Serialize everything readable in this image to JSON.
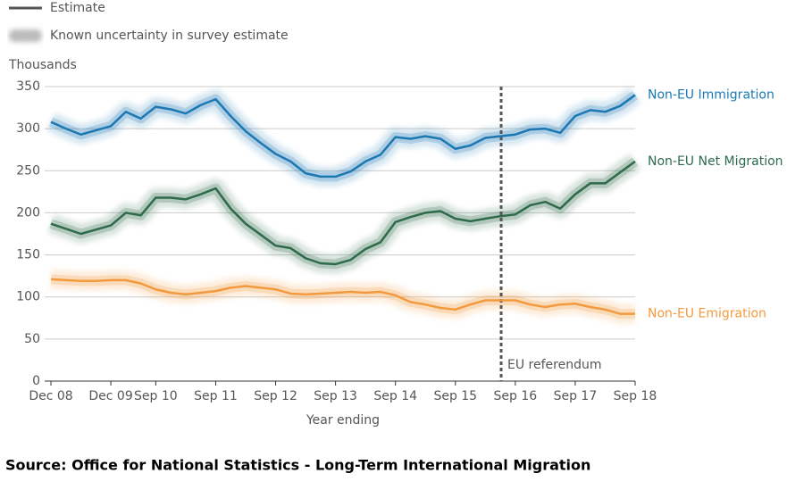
{
  "chart_data": {
    "type": "line",
    "legend": [
      "Estimate",
      "Known uncertainty in survey estimate"
    ],
    "y_label": "Thousands",
    "x_label": "Year ending",
    "annotation": "EU referendum",
    "source": "Source: Office for National Statistics - Long-Term International Migration",
    "categories": [
      "Dec 08",
      null,
      null,
      null,
      "Dec 09",
      null,
      null,
      "Sep 10",
      null,
      null,
      null,
      "Sep 11",
      null,
      null,
      null,
      "Sep 12",
      null,
      null,
      null,
      "Sep 13",
      null,
      null,
      null,
      "Sep 14",
      null,
      null,
      null,
      "Sep 15",
      null,
      null,
      null,
      "Sep 16",
      null,
      null,
      null,
      "Sep 17",
      null,
      null,
      null,
      "Sep 18"
    ],
    "series": [
      {
        "name": "Non-EU Immigration",
        "color": "#1b78b3",
        "values": [
          308,
          300,
          293,
          298,
          303,
          320,
          312,
          326,
          323,
          318,
          328,
          335,
          315,
          297,
          283,
          270,
          261,
          247,
          243,
          243,
          249,
          261,
          269,
          290,
          288,
          291,
          288,
          276,
          280,
          289,
          291,
          293,
          299,
          300,
          295,
          315,
          322,
          320,
          327,
          340
        ]
      },
      {
        "name": "Non-EU Net Migration",
        "color": "#2d6b4a",
        "values": [
          187,
          181,
          175,
          180,
          185,
          200,
          197,
          218,
          218,
          216,
          222,
          229,
          205,
          187,
          174,
          161,
          158,
          146,
          140,
          139,
          144,
          157,
          165,
          189,
          195,
          200,
          202,
          193,
          190,
          193,
          196,
          198,
          209,
          213,
          205,
          222,
          235,
          235,
          248,
          261
        ]
      },
      {
        "name": "Non-EU Emigration",
        "color": "#f39a3e",
        "values": [
          121,
          120,
          119,
          119,
          120,
          120,
          116,
          109,
          105,
          103,
          105,
          107,
          111,
          113,
          111,
          109,
          104,
          103,
          104,
          105,
          106,
          105,
          106,
          102,
          94,
          91,
          87,
          85,
          91,
          96,
          96,
          96,
          91,
          88,
          91,
          92,
          88,
          85,
          80,
          80
        ]
      }
    ],
    "ylim": [
      0,
      350
    ],
    "yticks": [
      0,
      50,
      100,
      150,
      200,
      250,
      300,
      350
    ],
    "grid": true
  }
}
